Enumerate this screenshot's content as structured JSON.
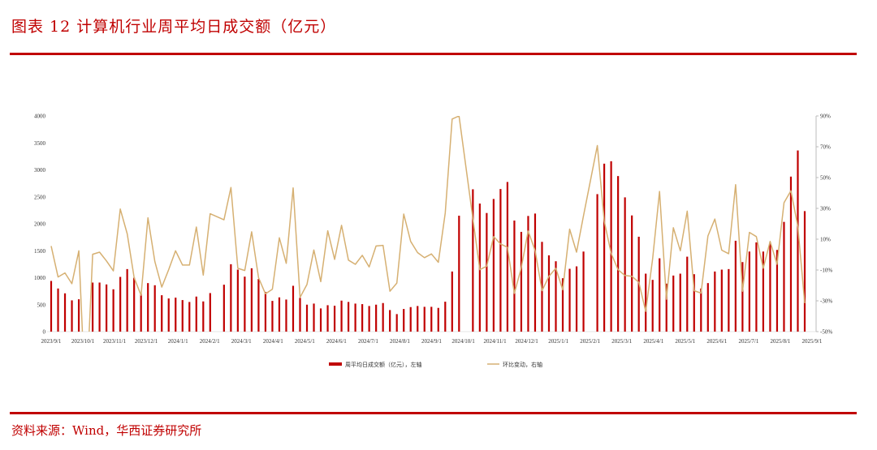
{
  "title": "图表 12 计算机行业周平均日成交额（亿元）",
  "source": "资料来源：Wind，华西证券研究所",
  "colors": {
    "accent": "#c00000",
    "bar": "#c00000",
    "line": "#d6b072",
    "right_axis": "#bbbbbb"
  },
  "chart_data": {
    "type": "bar+line",
    "legend": [
      "周平均日成交额（亿元），左轴",
      "环比变动，右轴"
    ],
    "legend_placement": "bottom",
    "grid": false,
    "x_tick_labels": [
      "2023/9/1",
      "2023/10/1",
      "2023/11/1",
      "2023/12/1",
      "2024/1/1",
      "2024/2/1",
      "2024/3/1",
      "2024/4/1",
      "2024/5/1",
      "2024/6/1",
      "2024/7/1",
      "2024/8/1",
      "2024/9/1",
      "2024/10/1",
      "2024/11/1",
      "2024/12/1",
      "2025/1/1",
      "2025/2/1",
      "2025/3/1",
      "2025/4/1",
      "2025/5/1",
      "2025/6/1",
      "2025/7/1",
      "2025/8/1",
      "2025/9/1"
    ],
    "left_axis": {
      "ylim": [
        0,
        4000
      ],
      "ticks": [
        "0",
        "500",
        "1000",
        "1500",
        "2000",
        "2500",
        "3000",
        "3500",
        "4000"
      ]
    },
    "right_axis": {
      "ylim": [
        -50,
        90
      ],
      "unit": "%",
      "ticks": [
        "-50%",
        "-30%",
        "-10%",
        "10%",
        "30%",
        "50%",
        "70%",
        "90%"
      ]
    },
    "series": [
      {
        "name": "周平均日成交额（亿元），左轴",
        "type": "bar",
        "axis": "left",
        "values": [
          940,
          800,
          710,
          580,
          600,
          null,
          910,
          910,
          875,
          785,
          1015,
          1160,
          1000,
          700,
          900,
          860,
          675,
          615,
          630,
          585,
          550,
          650,
          560,
          715,
          null,
          870,
          1250,
          1150,
          1020,
          1175,
          975,
          735,
          570,
          635,
          595,
          850,
          625,
          500,
          520,
          430,
          490,
          480,
          575,
          550,
          520,
          510,
          475,
          500,
          530,
          400,
          325,
          420,
          455,
          475,
          460,
          460,
          440,
          555,
          1115,
          2150,
          null,
          2640,
          2375,
          2200,
          2460,
          2645,
          2775,
          2060,
          1850,
          2145,
          2190,
          1665,
          1415,
          1305,
          990,
          1165,
          1210,
          1485,
          null,
          2550,
          3115,
          3160,
          2885,
          2490,
          2155,
          1760,
          1075,
          960,
          1360,
          890,
          1040,
          1075,
          1390,
          1065,
          800,
          900,
          1115,
          1150,
          1160,
          1685,
          1290,
          1485,
          1655,
          1485,
          1655,
          1515,
          2035,
          2875,
          3360,
          2235
        ]
      },
      {
        "name": "环比变动，右轴",
        "type": "line",
        "axis": "right",
        "values": [
          5.6,
          -14.5,
          -11.9,
          -18.9,
          2.5,
          -100,
          0.2,
          1.6,
          -4.1,
          -10.6,
          29.6,
          13.4,
          -15,
          -26.4,
          23.9,
          -4.5,
          -21.1,
          -9.8,
          2.5,
          -6.8,
          -6.8,
          17.9,
          -13.3,
          26.5,
          24.6,
          22.6,
          43.6,
          -8.9,
          -10.3,
          14.8,
          -15,
          -25.5,
          -22.5,
          10.9,
          -5.7,
          43.3,
          -27.8,
          -19.4,
          3,
          -17.6,
          15.5,
          -3.1,
          19,
          -3.6,
          -6.3,
          -0.5,
          -8,
          5.6,
          6,
          -23.8,
          -18.5,
          26.3,
          8.6,
          1.3,
          -2,
          0.4,
          -5,
          27,
          88,
          90,
          56.8,
          23.5,
          -9.8,
          -7.5,
          11.7,
          6.9,
          4.8,
          -25.2,
          -8.6,
          15.3,
          2.5,
          -23.4,
          -14.1,
          -8.9,
          -22.9,
          16.5,
          1.6,
          25.3,
          48,
          70.8,
          21.8,
          0.8,
          -9.8,
          -13.6,
          -14.1,
          -18,
          -36.9,
          -2.75,
          41,
          -29,
          17.4,
          2.5,
          28.2,
          -23.4,
          -25,
          12.1,
          23.1,
          2.9,
          0.6,
          45.4,
          -23.8,
          14.4,
          11.7,
          -8.9,
          8.6,
          -6.3,
          33.7,
          41.4,
          18.3,
          -31.6
        ]
      }
    ]
  }
}
